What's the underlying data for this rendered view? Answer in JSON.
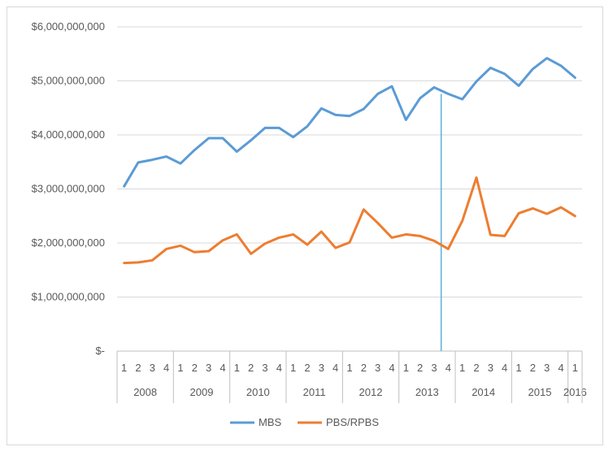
{
  "chart_data": {
    "type": "line",
    "y_tick_labels": [
      "$-",
      "$1,000,000,000",
      "$2,000,000,000",
      "$3,000,000,000",
      "$4,000,000,000",
      "$5,000,000,000",
      "$6,000,000,000"
    ],
    "y_ticks": [
      0,
      1000000000,
      2000000000,
      3000000000,
      4000000000,
      5000000000,
      6000000000
    ],
    "ylim": [
      0,
      6000000000
    ],
    "quarters": [
      "1",
      "2",
      "3",
      "4",
      "1",
      "2",
      "3",
      "4",
      "1",
      "2",
      "3",
      "4",
      "1",
      "2",
      "3",
      "4",
      "1",
      "2",
      "3",
      "4",
      "1",
      "2",
      "3",
      "4",
      "1",
      "2",
      "3",
      "4",
      "1",
      "2",
      "3",
      "4",
      "1"
    ],
    "years": [
      {
        "label": "2008",
        "quarters": 4
      },
      {
        "label": "2009",
        "quarters": 4
      },
      {
        "label": "2010",
        "quarters": 4
      },
      {
        "label": "2011",
        "quarters": 4
      },
      {
        "label": "2012",
        "quarters": 4
      },
      {
        "label": "2013",
        "quarters": 4
      },
      {
        "label": "2014",
        "quarters": 4
      },
      {
        "label": "2015",
        "quarters": 4
      },
      {
        "label": "2016",
        "quarters": 1
      }
    ],
    "series": [
      {
        "name": "MBS",
        "color": "#5b9bd5",
        "values": [
          3050000000,
          3490000000,
          3540000000,
          3600000000,
          3470000000,
          3720000000,
          3940000000,
          3940000000,
          3690000000,
          3900000000,
          4130000000,
          4130000000,
          3960000000,
          4160000000,
          4490000000,
          4370000000,
          4350000000,
          4480000000,
          4760000000,
          4900000000,
          4280000000,
          4680000000,
          4880000000,
          4760000000,
          4660000000,
          4990000000,
          5240000000,
          5130000000,
          4910000000,
          5220000000,
          5420000000,
          5280000000,
          5060000000
        ]
      },
      {
        "name": "PBS/RPBS",
        "color": "#ed7d31",
        "values": [
          1630000000,
          1640000000,
          1680000000,
          1890000000,
          1950000000,
          1830000000,
          1850000000,
          2050000000,
          2160000000,
          1800000000,
          1990000000,
          2100000000,
          2160000000,
          1970000000,
          2210000000,
          1910000000,
          2010000000,
          2620000000,
          2370000000,
          2100000000,
          2160000000,
          2130000000,
          2040000000,
          1890000000,
          2410000000,
          3210000000,
          2150000000,
          2130000000,
          2550000000,
          2640000000,
          2540000000,
          2660000000,
          2500000000
        ]
      }
    ],
    "marker_line": {
      "color": "#5bb0d8",
      "after_index": 22
    },
    "grid": true,
    "legend_position": "bottom"
  }
}
